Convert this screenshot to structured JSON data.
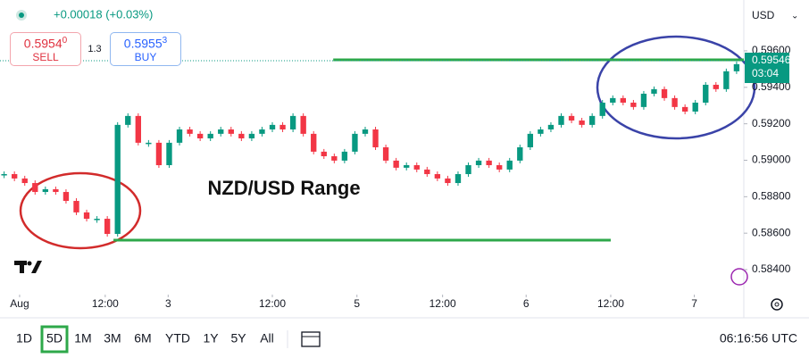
{
  "header": {
    "change": "+0.00018 (+0.03%)",
    "sell": {
      "price": "0.5954",
      "pip": "0",
      "label": "SELL"
    },
    "spread": "1.3",
    "buy": {
      "price": "0.5955",
      "pip": "3",
      "label": "BUY"
    },
    "currency": "USD"
  },
  "chart_data": {
    "type": "candlestick",
    "title": "NZD/USD Range",
    "values": [
      0.58924,
      0.589,
      0.58875,
      0.58826,
      0.58841,
      0.58826,
      0.58777,
      0.58714,
      0.58679,
      0.58679,
      0.58596,
      0.59194,
      0.59243,
      0.59096,
      0.59096,
      0.58973,
      0.59096,
      0.59169,
      0.59145,
      0.5912,
      0.59145,
      0.59169,
      0.59145,
      0.5912,
      0.59145,
      0.59169,
      0.59194,
      0.59169,
      0.59243,
      0.59145,
      0.59047,
      0.59022,
      0.58998,
      0.59047,
      0.59145,
      0.59169,
      0.59071,
      0.58998,
      0.58959,
      0.58973,
      0.58949,
      0.58924,
      0.589,
      0.58875,
      0.58924,
      0.58973,
      0.58998,
      0.58973,
      0.58949,
      0.58998,
      0.59071,
      0.59145,
      0.59169,
      0.59194,
      0.59243,
      0.59218,
      0.59194,
      0.59243,
      0.59316,
      0.59341,
      0.59316,
      0.59292,
      0.59365,
      0.5939,
      0.59341,
      0.59292,
      0.59267,
      0.59316,
      0.59414,
      0.5939,
      0.59488,
      0.59527
    ],
    "color_up": "#089981",
    "color_down": "#f23645",
    "ylim": [
      0.58263,
      0.59879
    ],
    "yticks": [
      {
        "value": 0.584,
        "label": "0.58400"
      },
      {
        "value": 0.586,
        "label": "0.58600"
      },
      {
        "value": 0.588,
        "label": "0.58800"
      },
      {
        "value": 0.59,
        "label": "0.59000"
      },
      {
        "value": 0.592,
        "label": "0.59200"
      },
      {
        "value": 0.594,
        "label": "0.59400"
      },
      {
        "value": 0.596,
        "label": "0.59600"
      }
    ],
    "xlim": [
      -0.4,
      71.7
    ],
    "xticks": [
      {
        "value": 1.5,
        "label": "Aug"
      },
      {
        "value": 9.8,
        "label": "12:00"
      },
      {
        "value": 15.9,
        "label": "3"
      },
      {
        "value": 26,
        "label": "12:00"
      },
      {
        "value": 34.2,
        "label": "5"
      },
      {
        "value": 42.5,
        "label": "12:00"
      },
      {
        "value": 50.6,
        "label": "6"
      },
      {
        "value": 58.8,
        "label": "12:00"
      },
      {
        "value": 66.9,
        "label": "7"
      }
    ],
    "levels": [
      {
        "value": 0.59551,
        "from": 31.9,
        "to": 71.7
      },
      {
        "value": 0.58562,
        "from": 10.6,
        "to": 58.8
      }
    ],
    "level_color": "#2ea84a",
    "last_price": 0.59546,
    "countdown": "03:04"
  },
  "toolbar": {
    "ranges": [
      "1D",
      "5D",
      "1M",
      "3M",
      "6M",
      "YTD",
      "1Y",
      "5Y",
      "All"
    ],
    "selected": 1,
    "time": "06:16:56 UTC"
  }
}
